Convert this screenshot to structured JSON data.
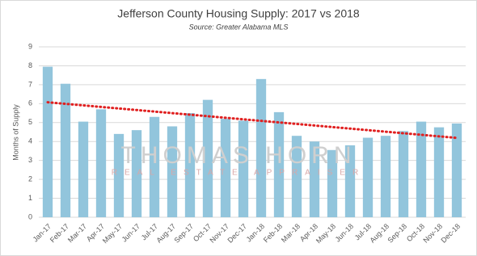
{
  "chart_data": {
    "type": "bar",
    "title": "Jefferson County Housing Supply: 2017 vs 2018",
    "subtitle": "Source: Greater Alabama MLS",
    "y_label": "Months of Supply",
    "watermark": [
      "THOMAS HORN",
      "REAL ESTATE APPRAISER"
    ],
    "categories": [
      "Jan-17",
      "Feb-17",
      "Mar-17",
      "Apr-17",
      "May-17",
      "Jun-17",
      "Jul-17",
      "Aug-17",
      "Sep-17",
      "Oct-17",
      "Nov-17",
      "Dec-17",
      "Jan-18",
      "Feb-18",
      "Mar-18",
      "Apr-18",
      "May-18",
      "Jun-18",
      "Jul-18",
      "Aug-18",
      "Sep-18",
      "Oct-18",
      "Nov-18",
      "Dec-18"
    ],
    "values": [
      7.95,
      7.05,
      5.05,
      5.7,
      4.4,
      4.6,
      5.3,
      4.8,
      5.5,
      6.2,
      5.2,
      5.1,
      7.3,
      5.55,
      4.3,
      4.0,
      3.55,
      3.8,
      4.2,
      4.3,
      4.55,
      5.05,
      4.75,
      4.95
    ],
    "color": "#92c5dc",
    "trendline": true,
    "trend_color": "#e02020",
    "ylim": [
      0,
      9
    ],
    "yticks": [
      0,
      1,
      2,
      3,
      4,
      5,
      6,
      7,
      8,
      9
    ],
    "grid": true
  }
}
